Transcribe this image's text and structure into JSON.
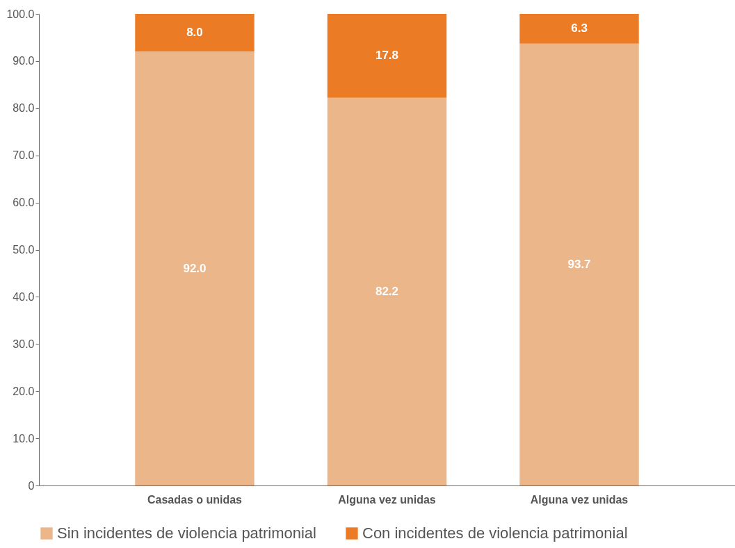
{
  "chart_data": {
    "type": "bar",
    "stacked": true,
    "categories": [
      "Casadas o unidas",
      "Alguna vez unidas",
      "Alguna vez unidas"
    ],
    "series": [
      {
        "name": "Sin incidentes de violencia patrimonial",
        "color": "#eab68a",
        "values": [
          92.0,
          82.2,
          93.7
        ],
        "value_labels": [
          "92.0",
          "82.2",
          "93.7"
        ]
      },
      {
        "name": "Con incidentes de violencia patrimonial",
        "color": "#ec7b25",
        "values": [
          8.0,
          17.8,
          6.3
        ],
        "value_labels": [
          "8.0",
          "17.8",
          "6.3"
        ]
      }
    ],
    "ylim": [
      0,
      100
    ],
    "yticks": [
      0,
      {
        "value": 10,
        "label": "10.0"
      },
      {
        "value": 20,
        "label": "20.0"
      },
      {
        "value": 30,
        "label": "30.0"
      },
      {
        "value": 40,
        "label": "40.0"
      },
      {
        "value": 50,
        "label": "50.0"
      },
      {
        "value": 60,
        "label": "60.0"
      },
      {
        "value": 70,
        "label": "70.0"
      },
      {
        "value": 80,
        "label": "80.0"
      },
      {
        "value": 90,
        "label": "90.0"
      },
      {
        "value": 100,
        "label": "100.0"
      }
    ],
    "grid": false,
    "legend": "bottom"
  }
}
